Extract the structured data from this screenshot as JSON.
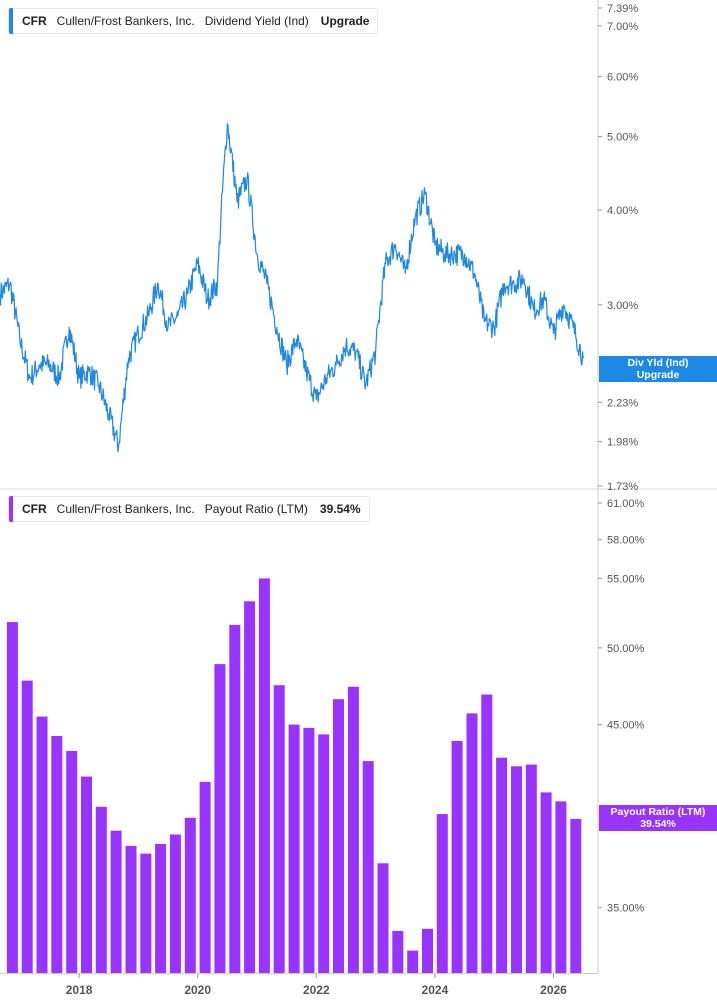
{
  "top_panel": {
    "ticker": "CFR",
    "company": "Cullen/Frost Bankers, Inc.",
    "metric": "Dividend Yield (Ind)",
    "value_text": "Upgrade",
    "tag_line1": "Div Yld (Ind)",
    "tag_line2": "Upgrade",
    "color": "#1e88e5"
  },
  "bottom_panel": {
    "ticker": "CFR",
    "company": "Cullen/Frost Bankers, Inc.",
    "metric": "Payout Ratio (LTM)",
    "value_text": "39.54%",
    "tag_line1": "Payout Ratio (LTM)",
    "tag_line2": "39.54%",
    "color": "#9933ff"
  },
  "chart_data": [
    {
      "type": "line",
      "yscale": "log",
      "ylim": [
        1.73,
        7.39
      ],
      "y_ticks": [
        {
          "value": 7.39,
          "label": "7.39%"
        },
        {
          "value": 7.0,
          "label": "7.00%"
        },
        {
          "value": 6.0,
          "label": "6.00%"
        },
        {
          "value": 5.0,
          "label": "5.00%"
        },
        {
          "value": 4.0,
          "label": "4.00%"
        },
        {
          "value": 3.0,
          "label": "3.00%"
        },
        {
          "value": 2.23,
          "label": "2.23%"
        },
        {
          "value": 1.98,
          "label": "1.98%"
        },
        {
          "value": 1.73,
          "label": "1.73%"
        }
      ],
      "x_ticks": [
        "2018",
        "2020",
        "2022",
        "2024",
        "2026"
      ],
      "xlim": [
        "2016-09",
        "2026-10"
      ],
      "series": [
        {
          "points": [
            [
              "2016-09",
              3.1
            ],
            [
              "2016-11",
              3.2
            ],
            [
              "2017-01",
              2.7
            ],
            [
              "2017-03",
              2.4
            ],
            [
              "2017-05",
              2.5
            ],
            [
              "2017-07",
              2.5
            ],
            [
              "2017-09",
              2.4
            ],
            [
              "2017-11",
              2.8
            ],
            [
              "2018-01",
              2.4
            ],
            [
              "2018-03",
              2.45
            ],
            [
              "2018-05",
              2.35
            ],
            [
              "2018-07",
              2.15
            ],
            [
              "2018-09",
              1.95
            ],
            [
              "2018-11",
              2.55
            ],
            [
              "2019-01",
              2.75
            ],
            [
              "2019-03",
              2.9
            ],
            [
              "2019-05",
              3.2
            ],
            [
              "2019-07",
              2.8
            ],
            [
              "2019-09",
              2.9
            ],
            [
              "2019-11",
              3.1
            ],
            [
              "2020-01",
              3.4
            ],
            [
              "2020-03",
              3.05
            ],
            [
              "2020-05",
              3.2
            ],
            [
              "2020-07",
              5.2
            ],
            [
              "2020-09",
              4.1
            ],
            [
              "2020-11",
              4.4
            ],
            [
              "2021-01",
              3.5
            ],
            [
              "2021-03",
              3.2
            ],
            [
              "2021-05",
              2.8
            ],
            [
              "2021-07",
              2.5
            ],
            [
              "2021-09",
              2.7
            ],
            [
              "2021-11",
              2.45
            ],
            [
              "2022-01",
              2.25
            ],
            [
              "2022-03",
              2.4
            ],
            [
              "2022-05",
              2.5
            ],
            [
              "2022-07",
              2.65
            ],
            [
              "2022-09",
              2.6
            ],
            [
              "2022-11",
              2.35
            ],
            [
              "2023-01",
              2.6
            ],
            [
              "2023-03",
              3.4
            ],
            [
              "2023-05",
              3.6
            ],
            [
              "2023-07",
              3.3
            ],
            [
              "2023-09",
              3.9
            ],
            [
              "2023-11",
              4.2
            ],
            [
              "2024-01",
              3.6
            ],
            [
              "2024-03",
              3.5
            ],
            [
              "2024-05",
              3.5
            ],
            [
              "2024-07",
              3.5
            ],
            [
              "2024-09",
              3.3
            ],
            [
              "2024-11",
              2.85
            ],
            [
              "2025-01",
              2.8
            ],
            [
              "2025-03",
              3.2
            ],
            [
              "2025-05",
              3.2
            ],
            [
              "2025-07",
              3.25
            ],
            [
              "2025-09",
              2.95
            ],
            [
              "2025-11",
              3.05
            ],
            [
              "2026-01",
              2.75
            ],
            [
              "2026-03",
              3.0
            ],
            [
              "2026-05",
              2.8
            ],
            [
              "2026-07",
              2.55
            ]
          ]
        }
      ]
    },
    {
      "type": "bar",
      "yscale": "log",
      "ylim": [
        32.0,
        61.0
      ],
      "y_ticks": [
        {
          "value": 61.0,
          "label": "61.00%"
        },
        {
          "value": 58.0,
          "label": "58.00%"
        },
        {
          "value": 55.0,
          "label": "55.00%"
        },
        {
          "value": 50.0,
          "label": "50.00%"
        },
        {
          "value": 45.0,
          "label": "45.00%"
        },
        {
          "value": 35.0,
          "label": "35.00%"
        }
      ],
      "x_ticks": [
        "2018",
        "2020",
        "2022",
        "2024",
        "2026"
      ],
      "xlim": [
        "2016-09",
        "2026-10"
      ],
      "categories": [
        "2016-Q4",
        "2017-Q1",
        "2017-Q2",
        "2017-Q3",
        "2017-Q4",
        "2018-Q1",
        "2018-Q2",
        "2018-Q3",
        "2018-Q4",
        "2019-Q1",
        "2019-Q2",
        "2019-Q3",
        "2019-Q4",
        "2020-Q1",
        "2020-Q2",
        "2020-Q3",
        "2020-Q4",
        "2021-Q1",
        "2021-Q2",
        "2021-Q3",
        "2021-Q4",
        "2022-Q1",
        "2022-Q2",
        "2022-Q3",
        "2022-Q4",
        "2023-Q1",
        "2023-Q2",
        "2023-Q3",
        "2023-Q4",
        "2024-Q1",
        "2024-Q2",
        "2024-Q3",
        "2024-Q4",
        "2025-Q1",
        "2025-Q2",
        "2025-Q3",
        "2025-Q4",
        "2026-Q1",
        "2026-Q2"
      ],
      "values": [
        51.8,
        47.8,
        45.5,
        44.3,
        43.4,
        41.9,
        40.2,
        38.9,
        38.1,
        37.7,
        38.2,
        38.7,
        39.6,
        41.6,
        48.9,
        51.6,
        53.3,
        55.0,
        47.5,
        45.0,
        44.8,
        44.4,
        46.6,
        47.4,
        42.8,
        37.2,
        33.9,
        33.0,
        34.0,
        39.8,
        44.0,
        45.7,
        46.9,
        43.0,
        42.5,
        42.6,
        41.0,
        40.5,
        39.54
      ]
    }
  ]
}
